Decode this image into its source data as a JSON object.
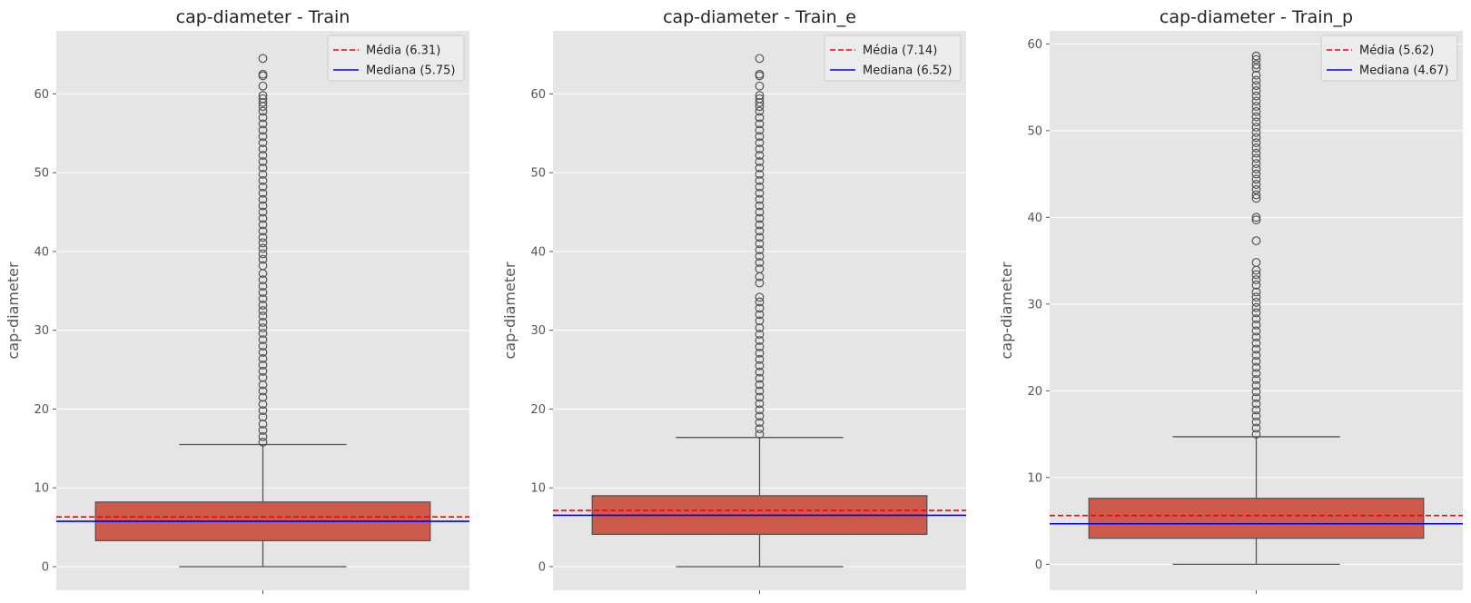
{
  "chart_data": [
    {
      "type": "boxplot",
      "title": "cap-diameter - Train",
      "xlabel": "",
      "ylabel": "cap-diameter",
      "ylim": [
        -3,
        68
      ],
      "yticks": [
        0,
        10,
        20,
        30,
        40,
        50,
        60
      ],
      "grid": true,
      "legend_position": "top-right",
      "colors": {
        "background": "#e5e5e5",
        "box": "#cd5a4a",
        "lines": "#555555",
        "mean": "#ff0000",
        "median": "#0000ff"
      },
      "box": {
        "whisker_low": 0,
        "q1": 3.3,
        "median": 5.75,
        "q3": 8.2,
        "whisker_high": 15.5
      },
      "outliers": [
        15.8,
        16.5,
        17.3,
        18.1,
        19.0,
        19.8,
        20.6,
        21.5,
        22.3,
        23.1,
        24.0,
        24.8,
        25.6,
        26.4,
        27.2,
        28.0,
        28.8,
        29.6,
        30.3,
        31.0,
        31.8,
        32.5,
        33.2,
        34.0,
        34.8,
        35.6,
        36.4,
        37.2,
        38.2,
        39.0,
        39.7,
        40.4,
        41.1,
        41.8,
        42.6,
        43.4,
        44.2,
        45.0,
        45.8,
        46.6,
        47.4,
        48.2,
        49.0,
        49.8,
        50.6,
        51.4,
        52.2,
        53.0,
        53.8,
        54.6,
        55.4,
        56.2,
        57.0,
        57.8,
        58.4,
        58.9,
        59.4,
        59.8,
        61.0,
        62.3,
        62.5,
        64.5
      ],
      "mean": 6.31,
      "legend": [
        {
          "label": "Média (6.31)",
          "style": "dashed",
          "color": "#ff0000"
        },
        {
          "label": "Mediana (5.75)",
          "style": "solid",
          "color": "#0000ff"
        }
      ]
    },
    {
      "type": "boxplot",
      "title": "cap-diameter - Train_e",
      "xlabel": "",
      "ylabel": "cap-diameter",
      "ylim": [
        -3,
        68
      ],
      "yticks": [
        0,
        10,
        20,
        30,
        40,
        50,
        60
      ],
      "grid": true,
      "legend_position": "top-right",
      "colors": {
        "background": "#e5e5e5",
        "box": "#cd5a4a",
        "lines": "#555555",
        "mean": "#ff0000",
        "median": "#0000ff"
      },
      "box": {
        "whisker_low": 0,
        "q1": 4.1,
        "median": 6.52,
        "q3": 9.0,
        "whisker_high": 16.4
      },
      "outliers": [
        16.8,
        17.5,
        18.3,
        19.1,
        19.9,
        20.7,
        21.5,
        22.3,
        23.1,
        23.9,
        24.7,
        25.5,
        26.3,
        27.1,
        27.9,
        28.7,
        29.5,
        30.3,
        31.2,
        32.0,
        32.8,
        33.6,
        34.2,
        36.0,
        36.8,
        37.8,
        38.6,
        39.4,
        40.2,
        41.0,
        41.8,
        42.6,
        43.4,
        44.2,
        45.0,
        45.8,
        46.6,
        47.4,
        48.2,
        49.0,
        49.8,
        50.6,
        51.4,
        52.2,
        53.0,
        53.8,
        54.6,
        55.4,
        56.2,
        57.0,
        57.8,
        58.4,
        58.9,
        59.4,
        59.8,
        61.0,
        62.3,
        62.5,
        64.5
      ],
      "mean": 7.14,
      "legend": [
        {
          "label": "Média (7.14)",
          "style": "dashed",
          "color": "#ff0000"
        },
        {
          "label": "Mediana (6.52)",
          "style": "solid",
          "color": "#0000ff"
        }
      ]
    },
    {
      "type": "boxplot",
      "title": "cap-diameter - Train_p",
      "xlabel": "",
      "ylabel": "cap-diameter",
      "ylim": [
        -3,
        61.5
      ],
      "yticks": [
        0,
        10,
        20,
        30,
        40,
        50,
        60
      ],
      "grid": true,
      "legend_position": "top-right",
      "colors": {
        "background": "#e5e5e5",
        "box": "#cd5a4a",
        "lines": "#555555",
        "mean": "#ff0000",
        "median": "#0000ff"
      },
      "box": {
        "whisker_low": 0,
        "q1": 3.0,
        "median": 4.67,
        "q3": 7.6,
        "whisker_high": 14.7
      },
      "outliers": [
        15.0,
        15.7,
        16.4,
        17.1,
        17.8,
        18.5,
        19.2,
        19.9,
        20.6,
        21.3,
        22.0,
        22.7,
        23.4,
        24.1,
        24.8,
        25.5,
        26.2,
        26.9,
        27.6,
        28.3,
        29.0,
        29.6,
        30.2,
        30.8,
        31.4,
        32.2,
        32.8,
        33.4,
        33.9,
        34.8,
        37.3,
        39.7,
        40.0,
        42.2,
        42.6,
        43.2,
        43.8,
        44.4,
        45.0,
        45.6,
        46.2,
        46.8,
        47.4,
        48.0,
        48.6,
        49.2,
        49.8,
        50.4,
        51.0,
        51.6,
        52.2,
        52.8,
        53.4,
        54.0,
        54.6,
        55.2,
        55.8,
        56.4,
        57.2,
        57.6,
        58.2,
        58.6
      ],
      "mean": 5.62,
      "legend": [
        {
          "label": "Média (5.62)",
          "style": "dashed",
          "color": "#ff0000"
        },
        {
          "label": "Mediana (4.67)",
          "style": "solid",
          "color": "#0000ff"
        }
      ]
    }
  ]
}
